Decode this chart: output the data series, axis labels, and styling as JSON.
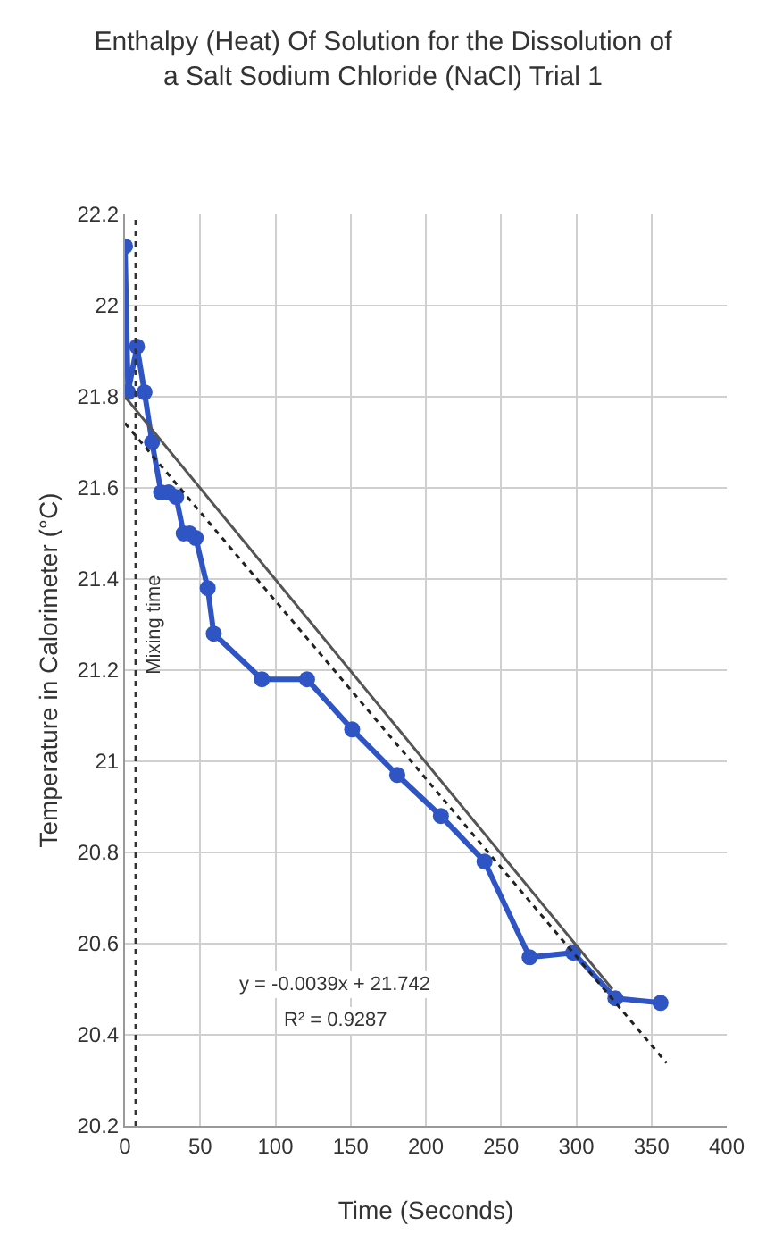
{
  "chart_data": {
    "type": "line",
    "title": "Enthalpy (Heat) Of Solution for the Dissolution of a Salt Sodium Chloride (NaCl) Trial 1",
    "xlabel": "Time (Seconds)",
    "ylabel": "Temperature in Calorimeter (°C)",
    "x": [
      0,
      2,
      8,
      13,
      18,
      24,
      29,
      34,
      39,
      43,
      47,
      55,
      59,
      91,
      121,
      151,
      181,
      210,
      239,
      269,
      298,
      326,
      356
    ],
    "series": [
      {
        "color": "#2f55c4",
        "values": [
          22.13,
          21.81,
          21.91,
          21.81,
          21.7,
          21.59,
          21.59,
          21.58,
          21.5,
          21.5,
          21.49,
          21.38,
          21.28,
          21.18,
          21.18,
          21.07,
          20.97,
          20.88,
          20.78,
          20.57,
          20.58,
          20.48,
          20.47
        ],
        "marker": "circle",
        "line_style": "solid"
      },
      {
        "type": "line",
        "color": "#222222",
        "x": [
          0,
          360
        ],
        "values": [
          21.742,
          20.338
        ],
        "marker": "none",
        "line_style": "dotted"
      },
      {
        "type": "line",
        "color": "#555555",
        "x": [
          0,
          324
        ],
        "values": [
          21.8,
          20.5
        ],
        "marker": "none",
        "line_style": "solid"
      }
    ],
    "xlim": [
      0,
      400
    ],
    "xticks": [
      0,
      50,
      100,
      150,
      200,
      250,
      300,
      350,
      400
    ],
    "ylim": [
      20.2,
      22.2
    ],
    "yticks": [
      20.2,
      20.4,
      20.6,
      20.8,
      21,
      21.2,
      21.4,
      21.6,
      21.8,
      22,
      22.2
    ],
    "ref_lines": [
      {
        "axis": "x",
        "value": 7,
        "label": "Mixing time",
        "color": "#333333",
        "line_style": "dotted"
      }
    ],
    "annotations": [
      "y = -0.0039x + 21.742",
      "R² = 0.9287"
    ],
    "grid": true
  }
}
